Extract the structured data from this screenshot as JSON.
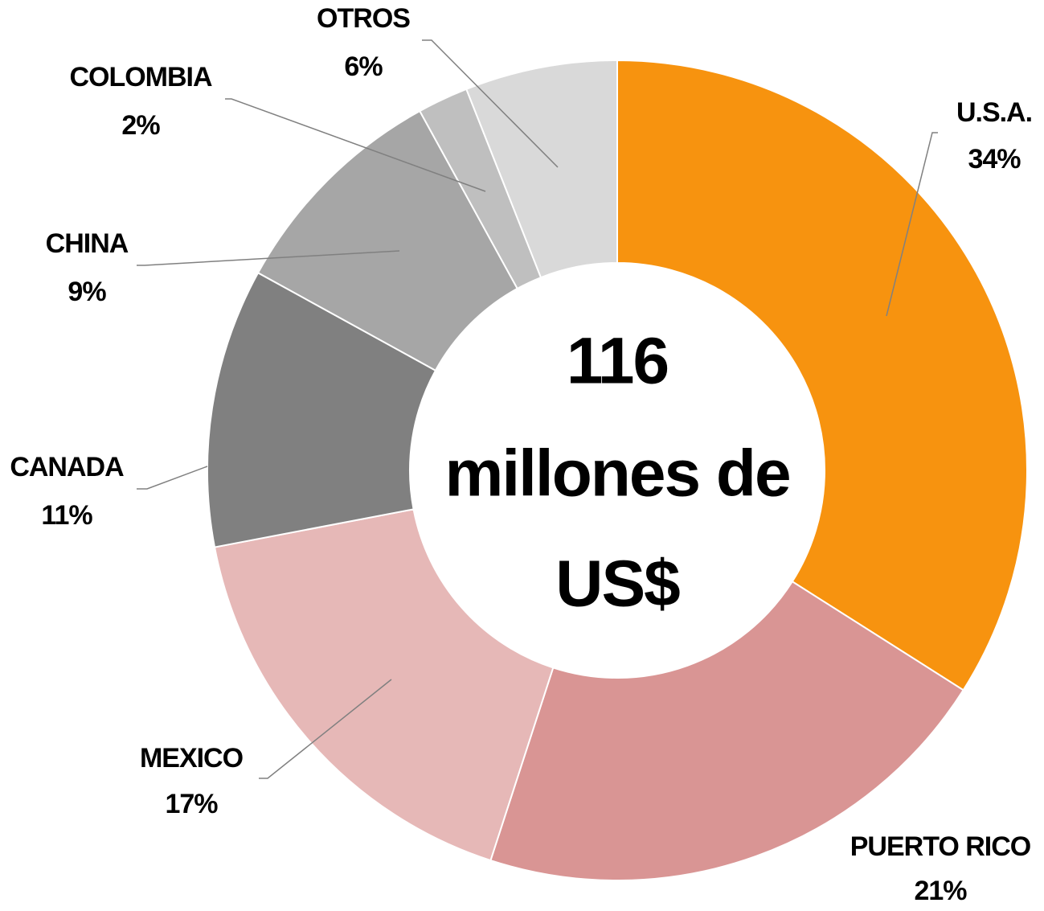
{
  "chart_data": {
    "type": "donut",
    "categories": [
      "U.S.A.",
      "PUERTO RICO",
      "MEXICO",
      "CANADA",
      "CHINA",
      "COLOMBIA",
      "OTROS"
    ],
    "values": [
      34,
      21,
      17,
      11,
      9,
      2,
      6
    ],
    "value_labels": [
      "34%",
      "21%",
      "17%",
      "11%",
      "9%",
      "2%",
      "6%"
    ],
    "colors": [
      "#f7930f",
      "#d99594",
      "#e6b8b7",
      "#808080",
      "#a6a6a6",
      "#bfbfbf",
      "#d9d9d9"
    ],
    "center_text": [
      "116",
      "millones de",
      "US$"
    ]
  }
}
